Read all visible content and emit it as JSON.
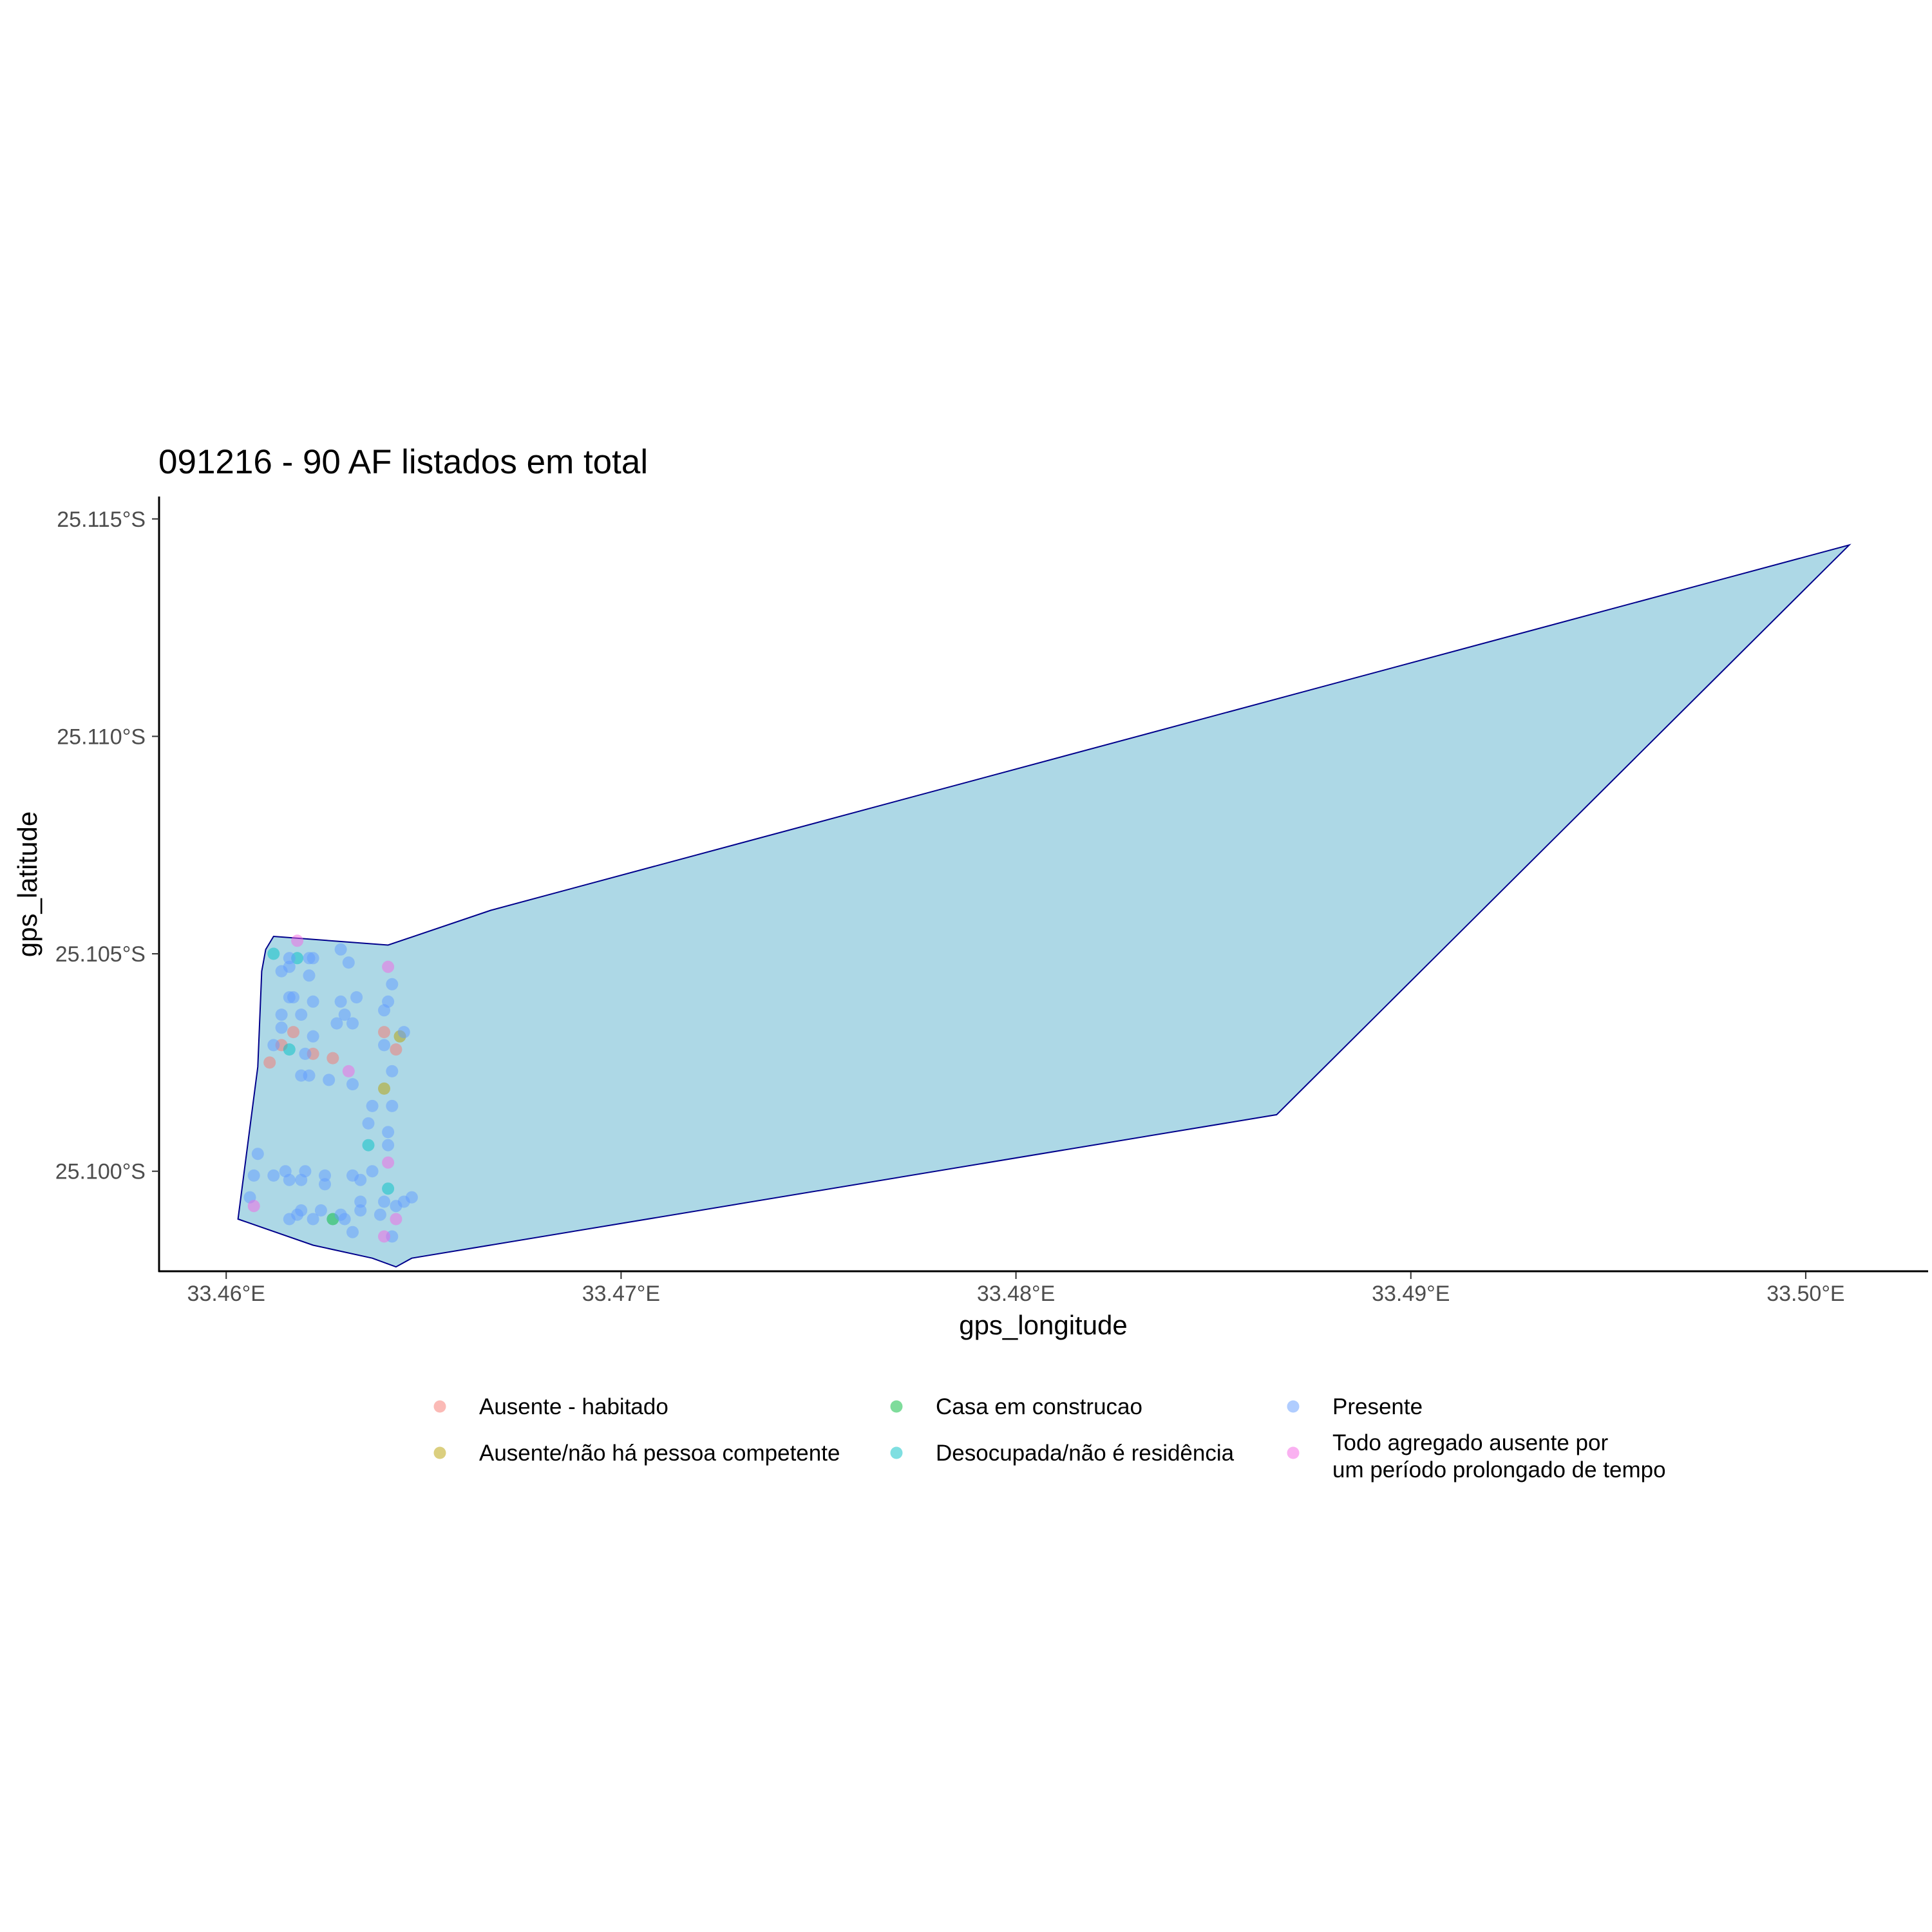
{
  "chart_data": {
    "type": "scatter",
    "title": "091216 - 90 AF listados em total",
    "xlabel": "gps_longitude",
    "ylabel": "gps_latitude",
    "xlim": [
      33.4583,
      33.5031
    ],
    "ylim": [
      -25.1155,
      -25.0977
    ],
    "x_ticks": [
      {
        "value": 33.46,
        "label": "33.46°E"
      },
      {
        "value": 33.47,
        "label": "33.47°E"
      },
      {
        "value": 33.48,
        "label": "33.48°E"
      },
      {
        "value": 33.49,
        "label": "33.49°E"
      },
      {
        "value": 33.5,
        "label": "33.50°E"
      }
    ],
    "y_ticks": [
      {
        "value": -25.1,
        "label": "25.100°S"
      },
      {
        "value": -25.105,
        "label": "25.105°S"
      },
      {
        "value": -25.11,
        "label": "25.110°S"
      },
      {
        "value": -25.115,
        "label": "25.115°S"
      }
    ],
    "grid": false,
    "legend_position": "bottom",
    "polygon": {
      "fill": "#add8e6",
      "stroke": "#00008b",
      "points": [
        [
          33.4603,
          -25.0989
        ],
        [
          33.4622,
          -25.0983
        ],
        [
          33.4637,
          -25.098
        ],
        [
          33.4643,
          -25.0978
        ],
        [
          33.4647,
          -25.098
        ],
        [
          33.4866,
          -25.1013
        ],
        [
          33.5011,
          -25.1144
        ],
        [
          33.4667,
          -25.106
        ],
        [
          33.4641,
          -25.1052
        ],
        [
          33.4612,
          -25.1054
        ],
        [
          33.461,
          -25.1051
        ],
        [
          33.4609,
          -25.1046
        ],
        [
          33.4608,
          -25.1024
        ]
      ]
    },
    "series": [
      {
        "name": "Ausente - habitado",
        "color": "#f8766d",
        "points": [
          [
            33.4611,
            -25.1025
          ],
          [
            33.4614,
            -25.1029
          ],
          [
            33.4617,
            -25.1032
          ],
          [
            33.4622,
            -25.1027
          ],
          [
            33.4627,
            -25.1026
          ],
          [
            33.464,
            -25.1032
          ],
          [
            33.4643,
            -25.1028
          ]
        ]
      },
      {
        "name": "Ausente/não há pessoa competente",
        "color": "#b79f00",
        "points": [
          [
            33.464,
            -25.1019
          ],
          [
            33.4644,
            -25.1031
          ]
        ]
      },
      {
        "name": "Casa em construcao",
        "color": "#00ba38",
        "points": [
          [
            33.4627,
            -25.0989
          ]
        ]
      },
      {
        "name": "Desocupada/não é residência",
        "color": "#00bfc4",
        "points": [
          [
            33.4641,
            -25.0996
          ],
          [
            33.4636,
            -25.1006
          ],
          [
            33.4616,
            -25.1028
          ],
          [
            33.4612,
            -25.105
          ],
          [
            33.4618,
            -25.1049
          ]
        ]
      },
      {
        "name": "Presente",
        "color": "#619cff",
        "points": [
          [
            33.4606,
            -25.0994
          ],
          [
            33.4607,
            -25.0999
          ],
          [
            33.4608,
            -25.1004
          ],
          [
            33.4612,
            -25.0999
          ],
          [
            33.4615,
            -25.1
          ],
          [
            33.4616,
            -25.0998
          ],
          [
            33.4616,
            -25.0989
          ],
          [
            33.4618,
            -25.099
          ],
          [
            33.4619,
            -25.0991
          ],
          [
            33.4619,
            -25.0998
          ],
          [
            33.462,
            -25.1
          ],
          [
            33.4622,
            -25.0989
          ],
          [
            33.4624,
            -25.0991
          ],
          [
            33.4625,
            -25.0997
          ],
          [
            33.4625,
            -25.0999
          ],
          [
            33.4629,
            -25.099
          ],
          [
            33.463,
            -25.0989
          ],
          [
            33.4632,
            -25.0986
          ],
          [
            33.4632,
            -25.0999
          ],
          [
            33.4634,
            -25.0998
          ],
          [
            33.4634,
            -25.0991
          ],
          [
            33.4634,
            -25.0993
          ],
          [
            33.4637,
            -25.1
          ],
          [
            33.4639,
            -25.099
          ],
          [
            33.464,
            -25.0993
          ],
          [
            33.4642,
            -25.0985
          ],
          [
            33.4643,
            -25.0992
          ],
          [
            33.4645,
            -25.0993
          ],
          [
            33.4647,
            -25.0994
          ],
          [
            33.4641,
            -25.1006
          ],
          [
            33.4641,
            -25.1009
          ],
          [
            33.4636,
            -25.1011
          ],
          [
            33.4637,
            -25.1015
          ],
          [
            33.4642,
            -25.1015
          ],
          [
            33.4612,
            -25.1029
          ],
          [
            33.4614,
            -25.1033
          ],
          [
            33.4614,
            -25.1036
          ],
          [
            33.4616,
            -25.104
          ],
          [
            33.4617,
            -25.104
          ],
          [
            33.4619,
            -25.1022
          ],
          [
            33.4619,
            -25.1036
          ],
          [
            33.462,
            -25.1027
          ],
          [
            33.4621,
            -25.1022
          ],
          [
            33.4622,
            -25.1031
          ],
          [
            33.4622,
            -25.1039
          ],
          [
            33.4621,
            -25.1045
          ],
          [
            33.4621,
            -25.1049
          ],
          [
            33.4622,
            -25.1049
          ],
          [
            33.4614,
            -25.1046
          ],
          [
            33.4616,
            -25.1047
          ],
          [
            33.4616,
            -25.1049
          ],
          [
            33.4626,
            -25.1021
          ],
          [
            33.4628,
            -25.1034
          ],
          [
            33.4629,
            -25.1039
          ],
          [
            33.4629,
            -25.1051
          ],
          [
            33.463,
            -25.1036
          ],
          [
            33.4631,
            -25.1048
          ],
          [
            33.4632,
            -25.102
          ],
          [
            33.4632,
            -25.1034
          ],
          [
            33.4633,
            -25.104
          ],
          [
            33.464,
            -25.1029
          ],
          [
            33.464,
            -25.1037
          ],
          [
            33.4641,
            -25.1039
          ],
          [
            33.4642,
            -25.1043
          ],
          [
            33.4642,
            -25.1023
          ],
          [
            33.4645,
            -25.1032
          ]
        ]
      },
      {
        "name": "Todo agregado ausente por um período prolongado de tempo",
        "name_lines": [
          "Todo agregado ausente por",
          "um período prolongado de tempo"
        ],
        "color": "#f564e3",
        "points": [
          [
            33.4607,
            -25.0992
          ],
          [
            33.464,
            -25.0985
          ],
          [
            33.4643,
            -25.0989
          ],
          [
            33.4641,
            -25.1002
          ],
          [
            33.4631,
            -25.1023
          ],
          [
            33.4641,
            -25.1047
          ],
          [
            33.4618,
            -25.1053
          ]
        ]
      }
    ]
  }
}
